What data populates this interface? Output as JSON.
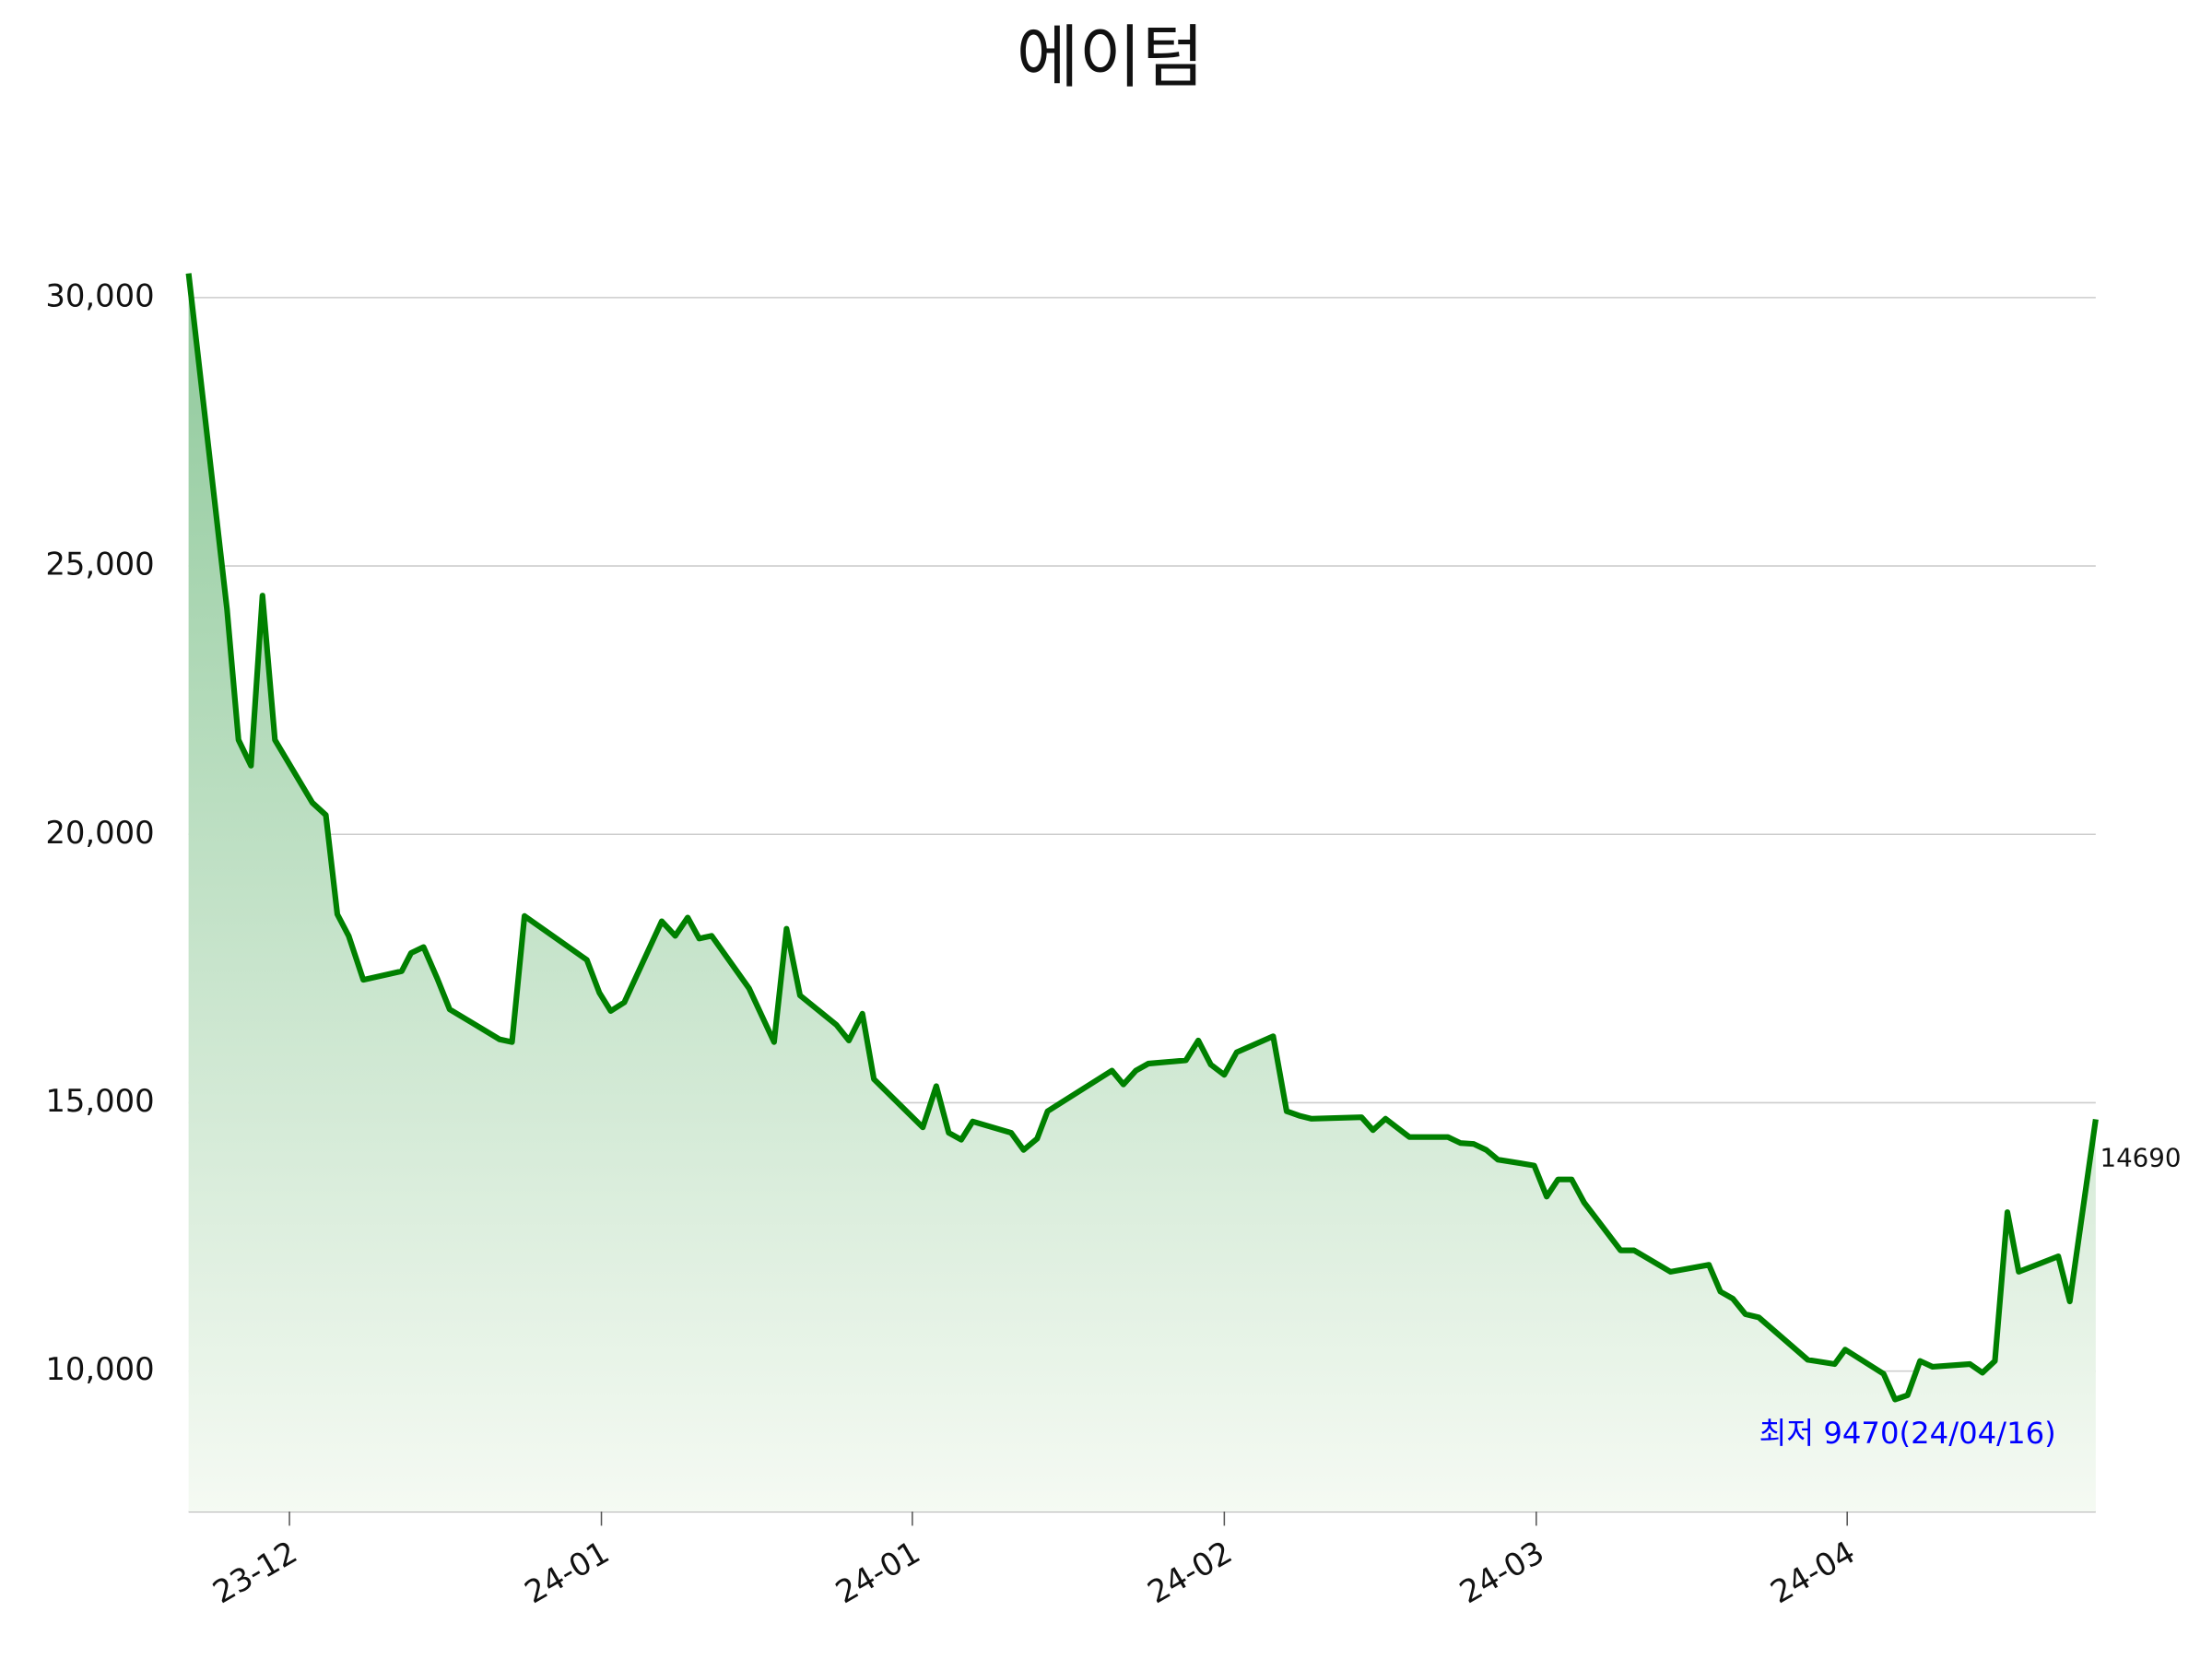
{
  "chart_data": {
    "type": "area",
    "title": "에이텀",
    "x": [
      0,
      3.7,
      4.8,
      6.0,
      7.1,
      8.3,
      11.9,
      13.2,
      14.3,
      15.4,
      16.8,
      20.5,
      21.4,
      22.6,
      23.9,
      25.1,
      29.9,
      31.1,
      32.3,
      38.3,
      39.5,
      40.6,
      41.9,
      45.5,
      46.8,
      48.0,
      49.1,
      50.3,
      53.9,
      56.3,
      57.5,
      58.8,
      62.3,
      63.5,
      64.8,
      65.9,
      70.6,
      71.9,
      73.1,
      74.3,
      75.4,
      79.1,
      80.3,
      81.6,
      82.6,
      88.8,
      89.9,
      91.1,
      92.3,
      95.9,
      97.1,
      98.3,
      99.6,
      100.8,
      104.3,
      105.6,
      106.8,
      108.0,
      112.8,
      113.9,
      115.1,
      117.4,
      121.1,
      122.3,
      123.6,
      124.8,
      125.9,
      129.4,
      130.6,
      131.7,
      133.0,
      134.2,
      137.7,
      139.0,
      142.5,
      146.2,
      147.3,
      148.5,
      149.7,
      151.0,
      155.7,
      158.3,
      159.3,
      163.0,
      164.1,
      165.3,
      166.5,
      167.7,
      171.3,
      172.5,
      173.7,
      174.9,
      176.0,
      179.8,
      180.9,
      183.4
    ],
    "series": [
      {
        "color": "#008000",
        "values": [
          30450,
          24190,
          21760,
          21280,
          24450,
          21760,
          20590,
          20360,
          18510,
          18110,
          17290,
          17450,
          17790,
          17900,
          17320,
          16740,
          16180,
          16130,
          18480,
          17660,
          17050,
          16710,
          16870,
          18380,
          18110,
          18450,
          18060,
          18110,
          17130,
          16130,
          18240,
          17000,
          16450,
          16160,
          16660,
          15440,
          14540,
          15310,
          14440,
          14310,
          14650,
          14440,
          14120,
          14330,
          14840,
          15600,
          15340,
          15600,
          15730,
          15790,
          16160,
          15710,
          15520,
          15940,
          16240,
          14840,
          14760,
          14700,
          14730,
          14490,
          14700,
          14360,
          14360,
          14250,
          14230,
          14120,
          13940,
          13830,
          13250,
          13570,
          13570,
          13140,
          12250,
          12250,
          11850,
          11980,
          11480,
          11350,
          11060,
          11000,
          10210,
          10130,
          10400,
          9950,
          9470,
          9550,
          10190,
          10080,
          10130,
          9970,
          10190,
          12960,
          11850,
          12140,
          11300,
          14690
        ]
      }
    ],
    "fill_top_color": "#8fc99b",
    "fill_bottom_color": "#f5faf3",
    "xlim": [
      0,
      183.4
    ],
    "xticks": [
      {
        "value": 9.7,
        "label": "23-12"
      },
      {
        "value": 39.7,
        "label": "24-01"
      },
      {
        "value": 69.6,
        "label": "24-01"
      },
      {
        "value": 99.6,
        "label": "24-02"
      },
      {
        "value": 129.6,
        "label": "24-03"
      },
      {
        "value": 159.5,
        "label": "24-04"
      }
    ],
    "ylim": [
      7384,
      31000
    ],
    "yticks": [
      {
        "value": 10000,
        "label": "10,000"
      },
      {
        "value": 15000,
        "label": "15,000"
      },
      {
        "value": 20000,
        "label": "20,000"
      },
      {
        "value": 25000,
        "label": "25,000"
      },
      {
        "value": 30000,
        "label": "30,000"
      }
    ],
    "grid": true,
    "annotation": {
      "text": "최저 9470(24/04/16)",
      "color": "#0000ff"
    }
  }
}
